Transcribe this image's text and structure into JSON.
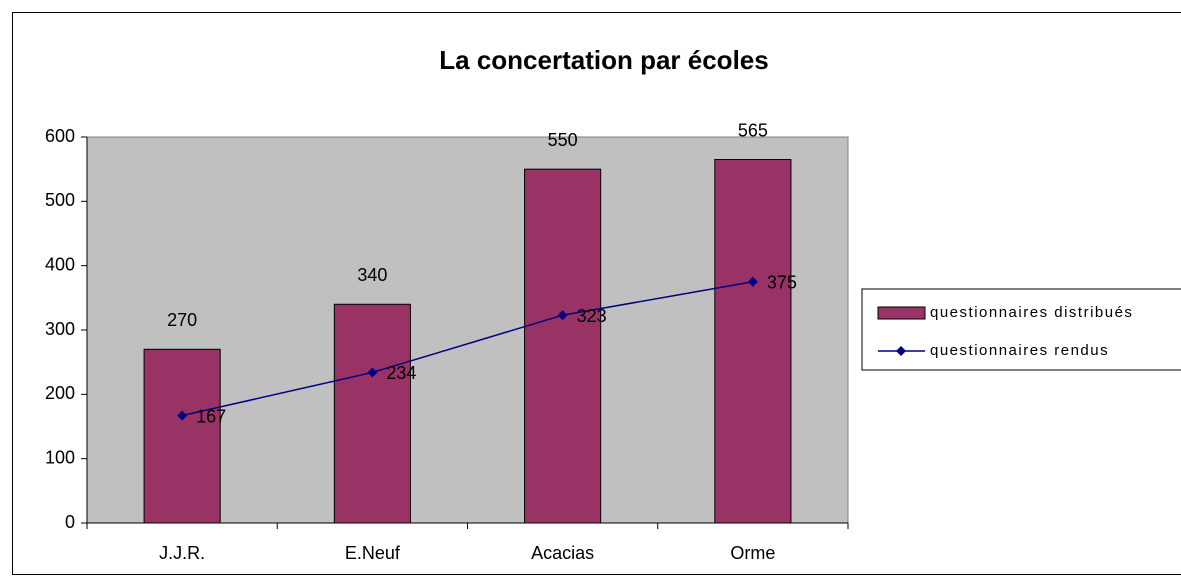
{
  "chart_data": {
    "type": "bar",
    "title": "La concertation par écoles",
    "categories": [
      "J.J.R.",
      "E.Neuf",
      "Acacias",
      "Orme"
    ],
    "series": [
      {
        "name": "questionnaires distribués",
        "type": "bar",
        "color": "#993366",
        "values": [
          270,
          340,
          550,
          565
        ]
      },
      {
        "name": "questionnaires rendus",
        "type": "line",
        "color": "#000080",
        "values": [
          167,
          234,
          323,
          375
        ]
      }
    ],
    "ylim": [
      0,
      600
    ],
    "yticks": [
      0,
      100,
      200,
      300,
      400,
      500,
      600
    ],
    "grid": false,
    "plot_background": "#c0c0c0",
    "legend": "right"
  }
}
